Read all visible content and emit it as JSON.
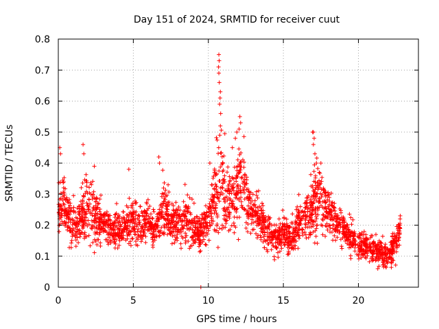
{
  "chart_data": {
    "type": "scatter",
    "title": "Day 151 of 2024, SRMTID for receiver cuut",
    "xlabel": "GPS time / hours",
    "ylabel": "SRMTID / TECUs",
    "xlim": [
      0,
      24
    ],
    "ylim": [
      0,
      0.8
    ],
    "xticks": [
      0,
      5,
      10,
      15,
      20
    ],
    "xtick_labels": [
      "0",
      "5",
      "10",
      "15",
      "20"
    ],
    "yticks": [
      0,
      0.1,
      0.2,
      0.3,
      0.4,
      0.5,
      0.6,
      0.7,
      0.8
    ],
    "ytick_labels": [
      "0",
      "0.1",
      "0.2",
      "0.3",
      "0.4",
      "0.5",
      "0.6",
      "0.7",
      "0.8"
    ],
    "grid": true,
    "marker": "plus",
    "color": "#ff0000",
    "trend": {
      "x": [
        0,
        0.3,
        0.6,
        1.0,
        1.3,
        1.7,
        2.0,
        2.5,
        3.0,
        3.5,
        4.0,
        4.5,
        5.0,
        5.5,
        6.0,
        6.5,
        7.0,
        7.5,
        8.0,
        8.5,
        9.0,
        9.5,
        10.0,
        10.3,
        10.6,
        10.9,
        11.2,
        11.6,
        12.0,
        12.3,
        12.7,
        13.0,
        13.5,
        14.0,
        14.5,
        15.0,
        15.5,
        16.0,
        16.5,
        17.0,
        17.3,
        17.6,
        18.0,
        18.5,
        19.0,
        19.5,
        20.0,
        20.5,
        21.0,
        21.5,
        22.0,
        22.5,
        22.8
      ],
      "center": [
        0.25,
        0.27,
        0.24,
        0.21,
        0.2,
        0.25,
        0.28,
        0.22,
        0.2,
        0.18,
        0.19,
        0.2,
        0.21,
        0.2,
        0.22,
        0.18,
        0.26,
        0.2,
        0.21,
        0.22,
        0.19,
        0.18,
        0.22,
        0.28,
        0.3,
        0.34,
        0.28,
        0.3,
        0.32,
        0.34,
        0.27,
        0.24,
        0.21,
        0.17,
        0.16,
        0.17,
        0.15,
        0.2,
        0.22,
        0.27,
        0.3,
        0.27,
        0.24,
        0.21,
        0.19,
        0.16,
        0.14,
        0.13,
        0.12,
        0.11,
        0.1,
        0.14,
        0.18
      ],
      "spread": [
        0.06,
        0.08,
        0.07,
        0.06,
        0.05,
        0.09,
        0.1,
        0.07,
        0.05,
        0.05,
        0.05,
        0.06,
        0.07,
        0.06,
        0.06,
        0.05,
        0.09,
        0.06,
        0.06,
        0.07,
        0.06,
        0.05,
        0.06,
        0.1,
        0.14,
        0.16,
        0.09,
        0.1,
        0.12,
        0.1,
        0.08,
        0.06,
        0.06,
        0.05,
        0.05,
        0.05,
        0.05,
        0.06,
        0.06,
        0.09,
        0.1,
        0.08,
        0.06,
        0.06,
        0.05,
        0.05,
        0.05,
        0.04,
        0.04,
        0.04,
        0.04,
        0.05,
        0.05
      ]
    },
    "peaks": [
      {
        "x": 0.1,
        "y": 0.45
      },
      {
        "x": 0.15,
        "y": 0.43
      },
      {
        "x": 1.65,
        "y": 0.46
      },
      {
        "x": 1.7,
        "y": 0.43
      },
      {
        "x": 2.4,
        "y": 0.39
      },
      {
        "x": 4.7,
        "y": 0.38
      },
      {
        "x": 6.7,
        "y": 0.42
      },
      {
        "x": 6.75,
        "y": 0.4
      },
      {
        "x": 9.5,
        "y": 0.0
      },
      {
        "x": 10.1,
        "y": 0.4
      },
      {
        "x": 10.7,
        "y": 0.75
      },
      {
        "x": 10.72,
        "y": 0.73
      },
      {
        "x": 10.68,
        "y": 0.71
      },
      {
        "x": 10.7,
        "y": 0.69
      },
      {
        "x": 10.73,
        "y": 0.66
      },
      {
        "x": 10.8,
        "y": 0.63
      },
      {
        "x": 10.78,
        "y": 0.61
      },
      {
        "x": 10.75,
        "y": 0.59
      },
      {
        "x": 10.82,
        "y": 0.56
      },
      {
        "x": 10.8,
        "y": 0.52
      },
      {
        "x": 10.76,
        "y": 0.49
      },
      {
        "x": 11.6,
        "y": 0.45
      },
      {
        "x": 11.8,
        "y": 0.48
      },
      {
        "x": 11.9,
        "y": 0.5
      },
      {
        "x": 12.1,
        "y": 0.55
      },
      {
        "x": 12.15,
        "y": 0.53
      },
      {
        "x": 12.05,
        "y": 0.51
      },
      {
        "x": 16.95,
        "y": 0.5
      },
      {
        "x": 17.0,
        "y": 0.5
      },
      {
        "x": 17.05,
        "y": 0.48
      },
      {
        "x": 17.0,
        "y": 0.46
      },
      {
        "x": 17.1,
        "y": 0.43
      },
      {
        "x": 17.2,
        "y": 0.4
      },
      {
        "x": 17.5,
        "y": 0.4
      }
    ],
    "n_points": 2600,
    "seed": 151
  }
}
